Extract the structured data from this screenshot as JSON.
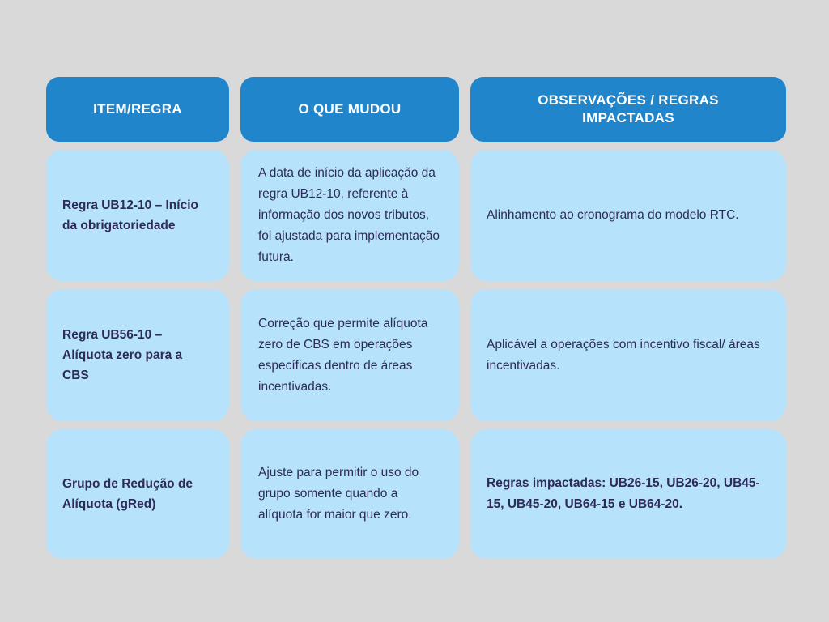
{
  "colors": {
    "page_background": "#d9d9d9",
    "header_background": "#2185cc",
    "header_text": "#ffffff",
    "cell_background": "#b7e2fb",
    "cell_text": "#2e2a59"
  },
  "table": {
    "headers": [
      {
        "label": "ITEM/REGRA"
      },
      {
        "label": "O QUE MUDOU"
      },
      {
        "label": "OBSERVAÇÕES / REGRAS IMPACTADAS"
      }
    ],
    "rows": [
      {
        "item": "Regra UB12-10 – Início da obrigatoriedade",
        "change": "A data de início da aplicação da regra UB12-10, referente à informação dos novos tributos, foi ajustada para implementação futura.",
        "notes": "Alinhamento ao cronograma do modelo RTC."
      },
      {
        "item": "Regra UB56-10 – Alíquota zero para a CBS",
        "change": "Correção que permite alíquota zero de CBS em operações específicas dentro de áreas incentivadas.",
        "notes": "Aplicável a operações com incentivo fiscal/ áreas incentivadas."
      },
      {
        "item": "Grupo de Redução de Alíquota (gRed)",
        "change": "Ajuste para permitir o uso do grupo somente quando a alíquota for maior que zero.",
        "notes": "Regras impactadas: UB26-15, UB26-20, UB45-15, UB45-20, UB64-15 e UB64-20."
      }
    ]
  }
}
